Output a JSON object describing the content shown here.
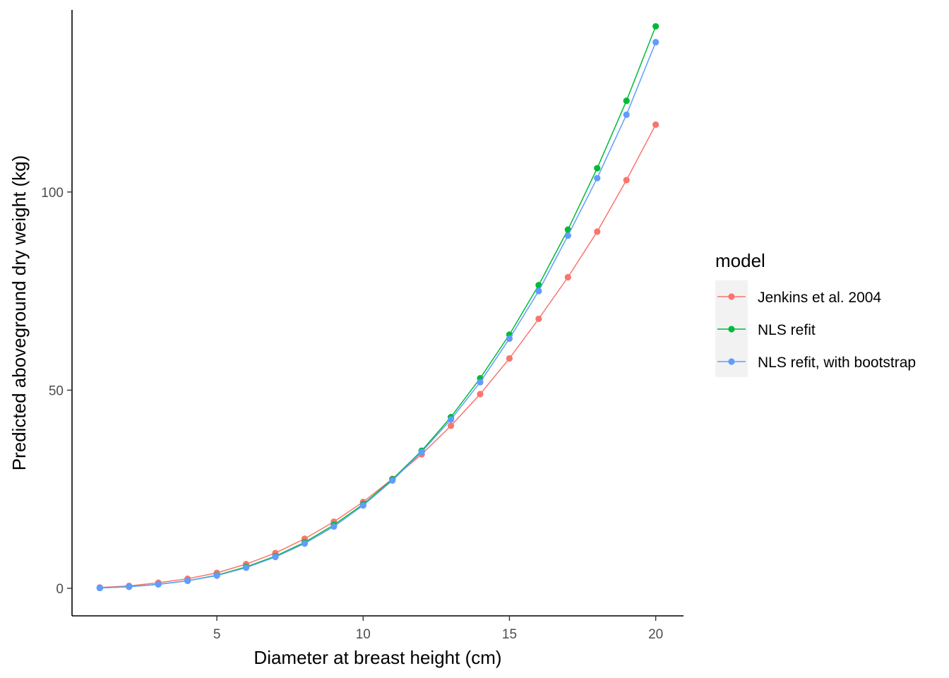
{
  "chart_data": {
    "type": "line",
    "title": "",
    "xlabel": "Diameter at breast height (cm)",
    "ylabel": "Predicted aboveground dry weight (kg)",
    "xlim": [
      0.05,
      20.95
    ],
    "ylim": [
      -6.95,
      145.95
    ],
    "grid": false,
    "x": [
      1,
      2,
      3,
      4,
      5,
      6,
      7,
      8,
      9,
      10,
      11,
      12,
      13,
      14,
      15,
      16,
      17,
      18,
      19,
      20
    ],
    "x_ticks": [
      5,
      10,
      15,
      20
    ],
    "y_ticks": [
      0,
      50,
      100
    ],
    "legend": {
      "title": "model",
      "position": "right"
    },
    "series": [
      {
        "name": "Jenkins et al. 2004",
        "color": "#F8766D",
        "values": [
          0.2,
          0.6,
          1.4,
          2.4,
          3.9,
          6.1,
          8.9,
          12.5,
          16.8,
          21.8,
          27.6,
          33.8,
          41.0,
          49.0,
          58.0,
          68.0,
          78.5,
          90.0,
          103.0,
          117.0
        ]
      },
      {
        "name": "NLS refit",
        "color": "#00BA38",
        "values": [
          0.1,
          0.4,
          1.0,
          1.9,
          3.3,
          5.4,
          8.1,
          11.6,
          16.0,
          21.2,
          27.5,
          34.7,
          43.2,
          53.0,
          64.0,
          76.5,
          90.5,
          106.0,
          123.0,
          141.8
        ]
      },
      {
        "name": "NLS refit, with bootstrap",
        "color": "#619CFF",
        "values": [
          0.1,
          0.4,
          1.0,
          1.9,
          3.2,
          5.2,
          7.9,
          11.3,
          15.6,
          20.9,
          27.2,
          34.4,
          42.6,
          52.0,
          63.0,
          75.0,
          89.0,
          103.5,
          119.5,
          137.8
        ]
      }
    ]
  }
}
